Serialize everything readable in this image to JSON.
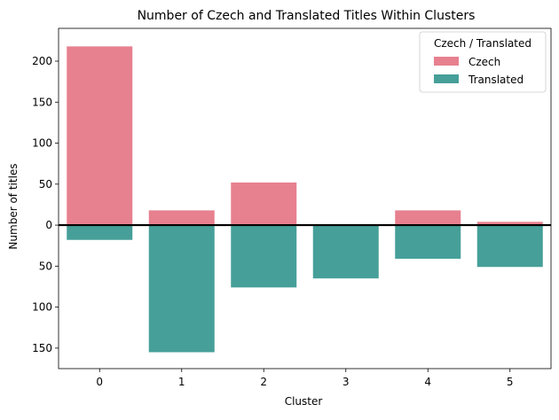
{
  "chart_data": {
    "type": "bar",
    "title": "Number of Czech and Translated Titles Within Clusters",
    "xlabel": "Cluster",
    "ylabel": "Number of titles",
    "categories": [
      "0",
      "1",
      "2",
      "3",
      "4",
      "5"
    ],
    "series": [
      {
        "name": "Czech",
        "values": [
          218,
          18,
          52,
          0,
          18,
          4
        ],
        "color": "#e7808f"
      },
      {
        "name": "Translated",
        "values": [
          -18,
          -155,
          -76,
          -65,
          -41,
          -51
        ],
        "color": "#469f99"
      }
    ],
    "ylim": [
      -175,
      240
    ],
    "yticks": [
      -150,
      -100,
      -50,
      0,
      50,
      100,
      150,
      200
    ],
    "ytick_labels": [
      "150",
      "100",
      "50",
      "0",
      "50",
      "100",
      "150",
      "200"
    ],
    "zero_line": true,
    "grid": false,
    "legend": {
      "title": "Czech / Translated",
      "position": "top-right",
      "entries": [
        "Czech",
        "Translated"
      ]
    }
  }
}
